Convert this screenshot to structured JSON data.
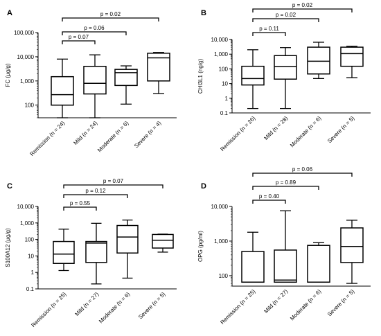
{
  "chart_data": [
    {
      "panel": "A",
      "type": "boxplot",
      "ylabel": "FC (μg/g)",
      "yscale": "log",
      "ylim": [
        30,
        100000
      ],
      "yticks": [
        100,
        1000,
        10000,
        100000
      ],
      "ytick_labels": [
        "100",
        "1,000",
        "10,000",
        "100,000"
      ],
      "categories": [
        "Remission (n = 24)",
        "Mild (n = 24)",
        "Moderate (n = 6)",
        "Severe (n = 4)"
      ],
      "boxes": [
        {
          "min": 30,
          "q1": 100,
          "median": 270,
          "q3": 1500,
          "max": 8000
        },
        {
          "min": 30,
          "q1": 290,
          "median": 800,
          "q3": 4000,
          "max": 12000
        },
        {
          "min": 110,
          "q1": 650,
          "median": 2200,
          "q3": 3000,
          "max": 4200
        },
        {
          "min": 300,
          "q1": 1000,
          "median": 9000,
          "q3": 14000,
          "max": 15000
        }
      ],
      "comparisons": [
        {
          "from": 0,
          "to": 1,
          "label": "p = 0.07"
        },
        {
          "from": 0,
          "to": 2,
          "label": "p = 0.06"
        },
        {
          "from": 0,
          "to": 3,
          "label": "p = 0.02"
        }
      ]
    },
    {
      "panel": "B",
      "type": "boxplot",
      "ylabel": "CHI3L1 (ng/g)",
      "yscale": "log",
      "ylim": [
        0.1,
        10000
      ],
      "yticks": [
        0.1,
        1,
        10,
        100,
        1000,
        10000
      ],
      "ytick_labels": [
        "0.1",
        "1",
        "10",
        "100",
        "1,000",
        "10,000"
      ],
      "categories": [
        "Remission (n = 26)",
        "Mild (n = 28)",
        "Moderate (n = 6)",
        "Severe (n = 5)"
      ],
      "boxes": [
        {
          "min": 0.2,
          "q1": 8,
          "median": 22,
          "q3": 150,
          "max": 2000
        },
        {
          "min": 0.2,
          "q1": 20,
          "median": 140,
          "q3": 800,
          "max": 2800
        },
        {
          "min": 22,
          "q1": 45,
          "median": 330,
          "q3": 3000,
          "max": 6500
        },
        {
          "min": 25,
          "q1": 150,
          "median": 1100,
          "q3": 3000,
          "max": 3500
        }
      ],
      "comparisons": [
        {
          "from": 0,
          "to": 1,
          "label": "p = 0.11"
        },
        {
          "from": 0,
          "to": 2,
          "label": "p = 0.02"
        },
        {
          "from": 0,
          "to": 3,
          "label": "p = 0.02"
        }
      ]
    },
    {
      "panel": "C",
      "type": "boxplot",
      "ylabel": "S100A12 (μg/g)",
      "yscale": "log",
      "ylim": [
        0.1,
        10000
      ],
      "yticks": [
        0.1,
        1,
        10,
        100,
        1000,
        10000
      ],
      "ytick_labels": [
        "0.1",
        "1",
        "10",
        "100",
        "1,000",
        "10,000"
      ],
      "categories": [
        "Remission (n = 25)",
        "Mild (n = 27)",
        "Moderate (n = 6)",
        "Severe (n = 5)"
      ],
      "boxes": [
        {
          "min": 1.3,
          "q1": 3.5,
          "median": 13,
          "q3": 75,
          "max": 420
        },
        {
          "min": 0.2,
          "q1": 4,
          "median": 60,
          "q3": 75,
          "max": 950
        },
        {
          "min": 0.45,
          "q1": 15,
          "median": 140,
          "q3": 700,
          "max": 1500
        },
        {
          "min": 17,
          "q1": 30,
          "median": 90,
          "q3": 200,
          "max": 210
        }
      ],
      "comparisons": [
        {
          "from": 0,
          "to": 1,
          "label": "p = 0.55"
        },
        {
          "from": 0,
          "to": 2,
          "label": "p = 0.12"
        },
        {
          "from": 0,
          "to": 3,
          "label": "p = 0.07"
        }
      ]
    },
    {
      "panel": "D",
      "type": "boxplot",
      "ylabel": "OPG (pg/ml)",
      "yscale": "log",
      "ylim": [
        50,
        10000
      ],
      "yticks": [
        100,
        1000,
        10000
      ],
      "ytick_labels": [
        "100",
        "1,000",
        "10,000"
      ],
      "categories": [
        "Remission (n = 25)",
        "Mild (n = 27)",
        "Moderate (n = 6)",
        "Severe (n = 5)"
      ],
      "boxes": [
        {
          "min": 65,
          "q1": 65,
          "median": 65,
          "q3": 500,
          "max": 1800
        },
        {
          "min": 65,
          "q1": 65,
          "median": 75,
          "q3": 550,
          "max": 7500
        },
        {
          "min": 65,
          "q1": 65,
          "median": 65,
          "q3": 750,
          "max": 900
        },
        {
          "min": 60,
          "q1": 240,
          "median": 700,
          "q3": 2400,
          "max": 4000
        }
      ],
      "comparisons": [
        {
          "from": 0,
          "to": 1,
          "label": "p = 0.40"
        },
        {
          "from": 0,
          "to": 2,
          "label": "p = 0.89"
        },
        {
          "from": 0,
          "to": 3,
          "label": "p = 0.06"
        }
      ]
    }
  ]
}
